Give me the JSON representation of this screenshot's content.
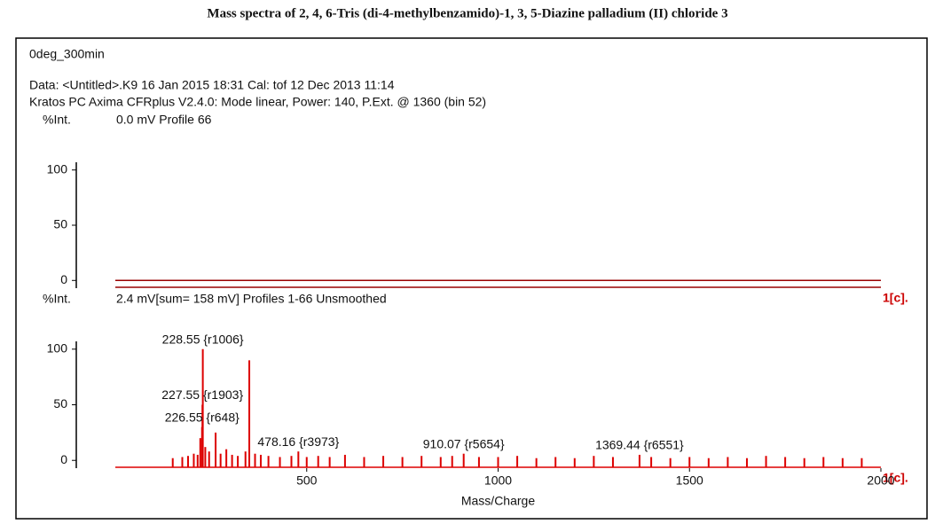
{
  "title": "Mass spectra of 2, 4, 6-Tris (di-4-methylbenzamido)-1, 3, 5-Diazine palladium (II) chloride 3",
  "header": {
    "sample": "0deg_300min",
    "data_line": "Data: <Untitled>.K9 16 Jan 2015 18:31 Cal: tof 12 Dec 2013 11:14",
    "instrument_line": "Kratos PC Axima CFRplus V2.4.0: Mode linear, Power: 140, P.Ext. @ 1360 (bin 52)"
  },
  "chart_data": [
    {
      "type": "line",
      "ylabel": "%Int.",
      "subtitle": "0.0 mV  Profile 66",
      "trace_label": "1[c].",
      "x": [
        0,
        2000
      ],
      "values": [
        0,
        0
      ],
      "color": "#990000",
      "xlim": [
        0,
        2000
      ],
      "ylim": [
        -7,
        107
      ],
      "yticks": [
        0,
        50,
        100
      ]
    },
    {
      "type": "stem",
      "ylabel": "%Int.",
      "subtitle": "2.4 mV[sum= 158 mV]  Profiles 1-66 Unsmoothed",
      "trace_label": "1[c].",
      "xlabel": "Mass/Charge",
      "x": [
        150,
        175,
        190,
        205,
        215,
        222,
        226.55,
        227.55,
        228.55,
        235,
        245,
        262,
        275,
        290,
        305,
        320,
        340,
        350,
        365,
        380,
        400,
        430,
        460,
        478.16,
        500,
        530,
        560,
        600,
        650,
        700,
        750,
        800,
        850,
        880,
        910.07,
        950,
        1000,
        1050,
        1100,
        1150,
        1200,
        1250,
        1300,
        1369.44,
        1400,
        1450,
        1500,
        1550,
        1600,
        1650,
        1700,
        1750,
        1800,
        1850,
        1900,
        1950
      ],
      "values": [
        2,
        3,
        4,
        6,
        5,
        20,
        30,
        50,
        100,
        12,
        8,
        25,
        6,
        10,
        5,
        4,
        8,
        90,
        6,
        5,
        4,
        3,
        4,
        8,
        3,
        4,
        3,
        5,
        3,
        4,
        3,
        4,
        3,
        4,
        6,
        3,
        3,
        4,
        2,
        3,
        2,
        4,
        3,
        5,
        3,
        2,
        3,
        2,
        3,
        2,
        4,
        3,
        2,
        3,
        2,
        2
      ],
      "color": "#dd0000",
      "annotations": [
        {
          "text": "228.55 {r1006}",
          "x": 228.55,
          "y": 100
        },
        {
          "text": "227.55 {r1903}",
          "x": 227.55,
          "y": 50
        },
        {
          "text": "226.55 {r648}",
          "x": 226.55,
          "y": 30
        },
        {
          "text": "478.16 {r3973}",
          "x": 478.16,
          "y": 8
        },
        {
          "text": "910.07 {r5654}",
          "x": 910.07,
          "y": 6
        },
        {
          "text": "1369.44 {r6551}",
          "x": 1369.44,
          "y": 5
        }
      ],
      "xlim": [
        0,
        2000
      ],
      "xticks": [
        500,
        1000,
        1500,
        2000
      ],
      "ylim": [
        -7,
        107
      ],
      "yticks": [
        0,
        50,
        100
      ]
    }
  ]
}
